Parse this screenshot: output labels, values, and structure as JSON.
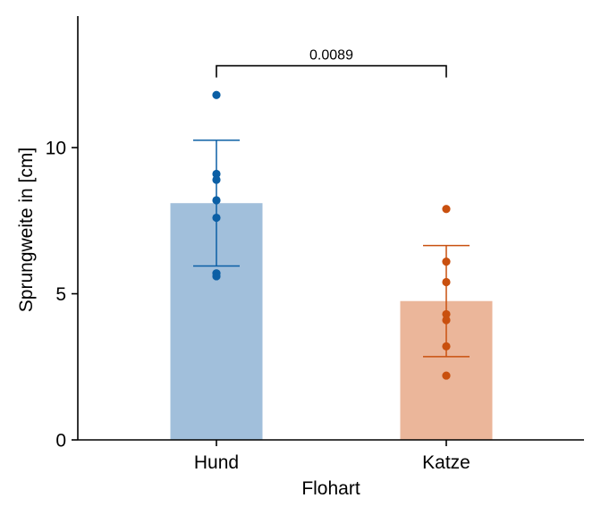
{
  "chart_data": {
    "type": "bar",
    "categories": [
      "Hund",
      "Katze"
    ],
    "xlabel": "Flohart",
    "ylabel": "Sprungweite in [cm]",
    "ylim": [
      0,
      14.5
    ],
    "yticks": [
      0,
      5,
      10
    ],
    "grid": false,
    "series": [
      {
        "values": [
          8.1,
          4.75
        ],
        "error": [
          2.15,
          1.9
        ],
        "points": [
          [
            11.8,
            9.1,
            8.9,
            8.2,
            7.6,
            5.7,
            5.6
          ],
          [
            7.9,
            6.1,
            5.4,
            4.3,
            4.1,
            3.2,
            2.2
          ]
        ]
      }
    ],
    "annotations": [
      {
        "type": "significance-bracket",
        "from": "Hund",
        "to": "Katze",
        "y": 12.8,
        "drop": 0.4,
        "text": "0.0089"
      }
    ],
    "colors": {
      "bars": [
        "#a1bfdb",
        "#ebb69a"
      ],
      "points": [
        "#0b5fa5",
        "#c9500f"
      ],
      "axis": "#000000"
    }
  }
}
